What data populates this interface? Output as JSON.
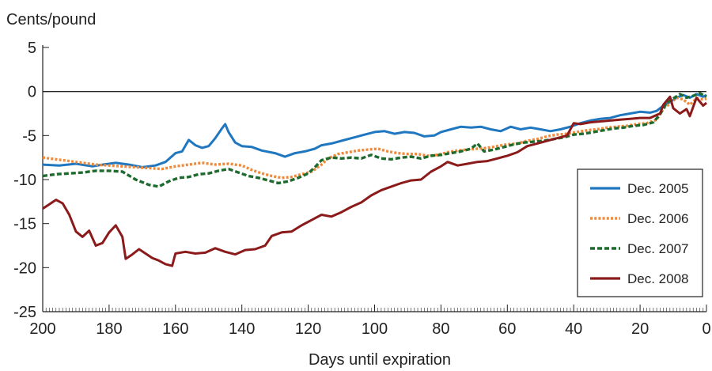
{
  "chart_data": {
    "type": "line",
    "ylabel": "Cents/pound",
    "xlabel": "Days until expiration",
    "xlim": [
      200,
      0
    ],
    "ylim": [
      -25,
      5
    ],
    "xticks": [
      200,
      180,
      160,
      140,
      120,
      100,
      80,
      60,
      40,
      20,
      0
    ],
    "yticks": [
      5,
      0,
      -5,
      -10,
      -15,
      -20,
      -25
    ],
    "grid": false,
    "legend_position": "right",
    "series": [
      {
        "name": "Dec. 2005",
        "color": "#1f77c0",
        "style": "solid",
        "points": [
          [
            200,
            -8.3
          ],
          [
            195,
            -8.4
          ],
          [
            190,
            -8.2
          ],
          [
            185,
            -8.5
          ],
          [
            182,
            -8.3
          ],
          [
            178,
            -8.1
          ],
          [
            174,
            -8.3
          ],
          [
            170,
            -8.6
          ],
          [
            166,
            -8.4
          ],
          [
            163,
            -8.0
          ],
          [
            160,
            -7.0
          ],
          [
            158,
            -6.8
          ],
          [
            156,
            -5.5
          ],
          [
            154,
            -6.1
          ],
          [
            152,
            -6.4
          ],
          [
            150,
            -6.2
          ],
          [
            148,
            -5.3
          ],
          [
            146,
            -4.2
          ],
          [
            145,
            -3.7
          ],
          [
            144,
            -4.6
          ],
          [
            142,
            -5.8
          ],
          [
            140,
            -6.2
          ],
          [
            137,
            -6.3
          ],
          [
            134,
            -6.7
          ],
          [
            130,
            -7.0
          ],
          [
            127,
            -7.4
          ],
          [
            124,
            -7.0
          ],
          [
            121,
            -6.8
          ],
          [
            118,
            -6.5
          ],
          [
            116,
            -6.1
          ],
          [
            113,
            -5.9
          ],
          [
            110,
            -5.6
          ],
          [
            106,
            -5.2
          ],
          [
            103,
            -4.9
          ],
          [
            100,
            -4.6
          ],
          [
            97,
            -4.5
          ],
          [
            94,
            -4.8
          ],
          [
            91,
            -4.6
          ],
          [
            88,
            -4.7
          ],
          [
            85,
            -5.1
          ],
          [
            82,
            -5.0
          ],
          [
            80,
            -4.6
          ],
          [
            77,
            -4.3
          ],
          [
            74,
            -4.0
          ],
          [
            71,
            -4.1
          ],
          [
            68,
            -4.0
          ],
          [
            65,
            -4.3
          ],
          [
            62,
            -4.5
          ],
          [
            59,
            -4.0
          ],
          [
            56,
            -4.3
          ],
          [
            53,
            -4.1
          ],
          [
            50,
            -4.3
          ],
          [
            47,
            -4.5
          ],
          [
            44,
            -4.3
          ],
          [
            41,
            -4.0
          ],
          [
            38,
            -3.6
          ],
          [
            35,
            -3.3
          ],
          [
            32,
            -3.1
          ],
          [
            29,
            -3.0
          ],
          [
            26,
            -2.7
          ],
          [
            23,
            -2.5
          ],
          [
            20,
            -2.3
          ],
          [
            17,
            -2.4
          ],
          [
            15,
            -2.2
          ],
          [
            13,
            -1.6
          ],
          [
            11,
            -1.2
          ],
          [
            9,
            -0.7
          ],
          [
            7,
            -0.4
          ],
          [
            5,
            -0.7
          ],
          [
            3,
            -0.3
          ],
          [
            1,
            -0.6
          ],
          [
            0,
            -0.4
          ]
        ]
      },
      {
        "name": "Dec. 2006",
        "color": "#f08a3a",
        "style": "dotted",
        "points": [
          [
            200,
            -7.5
          ],
          [
            196,
            -7.7
          ],
          [
            192,
            -7.9
          ],
          [
            188,
            -8.1
          ],
          [
            184,
            -8.3
          ],
          [
            180,
            -8.4
          ],
          [
            176,
            -8.5
          ],
          [
            172,
            -8.6
          ],
          [
            168,
            -8.7
          ],
          [
            164,
            -8.8
          ],
          [
            160,
            -8.5
          ],
          [
            156,
            -8.3
          ],
          [
            152,
            -8.1
          ],
          [
            148,
            -8.3
          ],
          [
            144,
            -8.2
          ],
          [
            140,
            -8.4
          ],
          [
            137,
            -8.9
          ],
          [
            134,
            -9.3
          ],
          [
            131,
            -9.6
          ],
          [
            128,
            -9.8
          ],
          [
            125,
            -9.7
          ],
          [
            122,
            -9.4
          ],
          [
            119,
            -9.1
          ],
          [
            116,
            -8.3
          ],
          [
            114,
            -7.6
          ],
          [
            111,
            -7.1
          ],
          [
            108,
            -6.9
          ],
          [
            105,
            -6.7
          ],
          [
            102,
            -6.6
          ],
          [
            99,
            -6.5
          ],
          [
            96,
            -6.8
          ],
          [
            93,
            -7.0
          ],
          [
            90,
            -7.1
          ],
          [
            87,
            -7.1
          ],
          [
            84,
            -7.3
          ],
          [
            81,
            -7.2
          ],
          [
            78,
            -6.9
          ],
          [
            75,
            -6.7
          ],
          [
            72,
            -6.6
          ],
          [
            69,
            -6.5
          ],
          [
            66,
            -6.4
          ],
          [
            63,
            -6.2
          ],
          [
            60,
            -6.0
          ],
          [
            57,
            -5.9
          ],
          [
            54,
            -5.6
          ],
          [
            51,
            -5.4
          ],
          [
            48,
            -5.1
          ],
          [
            45,
            -4.9
          ],
          [
            42,
            -4.8
          ],
          [
            39,
            -4.6
          ],
          [
            36,
            -4.4
          ],
          [
            33,
            -4.3
          ],
          [
            30,
            -4.1
          ],
          [
            27,
            -4.0
          ],
          [
            24,
            -3.9
          ],
          [
            21,
            -3.7
          ],
          [
            18,
            -3.6
          ],
          [
            15,
            -3.2
          ],
          [
            13,
            -1.9
          ],
          [
            11,
            -1.4
          ],
          [
            9,
            -0.7
          ],
          [
            7,
            -0.9
          ],
          [
            5,
            -1.5
          ],
          [
            3,
            -0.8
          ],
          [
            1,
            -0.9
          ],
          [
            0,
            -0.8
          ]
        ]
      },
      {
        "name": "Dec. 2007",
        "color": "#1e6b2e",
        "style": "dashed",
        "points": [
          [
            200,
            -9.6
          ],
          [
            196,
            -9.4
          ],
          [
            192,
            -9.3
          ],
          [
            188,
            -9.2
          ],
          [
            184,
            -9.0
          ],
          [
            180,
            -9.0
          ],
          [
            176,
            -9.1
          ],
          [
            172,
            -10.0
          ],
          [
            168,
            -10.6
          ],
          [
            165,
            -10.8
          ],
          [
            162,
            -10.2
          ],
          [
            159,
            -9.8
          ],
          [
            156,
            -9.7
          ],
          [
            153,
            -9.4
          ],
          [
            150,
            -9.3
          ],
          [
            147,
            -9.0
          ],
          [
            144,
            -8.8
          ],
          [
            141,
            -9.2
          ],
          [
            138,
            -9.6
          ],
          [
            135,
            -9.8
          ],
          [
            132,
            -10.1
          ],
          [
            129,
            -10.4
          ],
          [
            126,
            -10.2
          ],
          [
            123,
            -9.8
          ],
          [
            120,
            -9.3
          ],
          [
            118,
            -8.6
          ],
          [
            116,
            -7.8
          ],
          [
            113,
            -7.5
          ],
          [
            110,
            -7.6
          ],
          [
            107,
            -7.5
          ],
          [
            104,
            -7.6
          ],
          [
            101,
            -7.2
          ],
          [
            98,
            -7.6
          ],
          [
            95,
            -7.7
          ],
          [
            92,
            -7.5
          ],
          [
            89,
            -7.4
          ],
          [
            86,
            -7.6
          ],
          [
            83,
            -7.3
          ],
          [
            80,
            -7.2
          ],
          [
            77,
            -7.0
          ],
          [
            74,
            -6.8
          ],
          [
            71,
            -6.5
          ],
          [
            69,
            -5.9
          ],
          [
            67,
            -6.8
          ],
          [
            64,
            -6.6
          ],
          [
            61,
            -6.3
          ],
          [
            58,
            -6.0
          ],
          [
            55,
            -5.8
          ],
          [
            52,
            -5.7
          ],
          [
            49,
            -5.6
          ],
          [
            46,
            -5.4
          ],
          [
            43,
            -5.2
          ],
          [
            40,
            -4.9
          ],
          [
            37,
            -4.8
          ],
          [
            34,
            -4.6
          ],
          [
            31,
            -4.4
          ],
          [
            28,
            -4.2
          ],
          [
            25,
            -4.1
          ],
          [
            22,
            -3.9
          ],
          [
            19,
            -3.8
          ],
          [
            16,
            -3.5
          ],
          [
            14,
            -2.6
          ],
          [
            12,
            -1.3
          ],
          [
            10,
            -0.8
          ],
          [
            8,
            -0.3
          ],
          [
            6,
            -0.7
          ],
          [
            4,
            -0.5
          ],
          [
            2,
            -0.2
          ],
          [
            0,
            -0.6
          ]
        ]
      },
      {
        "name": "Dec. 2008",
        "color": "#8b1a1a",
        "style": "solid",
        "points": [
          [
            200,
            -13.3
          ],
          [
            198,
            -12.8
          ],
          [
            196,
            -12.3
          ],
          [
            194,
            -12.7
          ],
          [
            192,
            -14.0
          ],
          [
            190,
            -15.9
          ],
          [
            188,
            -16.5
          ],
          [
            186,
            -15.8
          ],
          [
            184,
            -17.5
          ],
          [
            182,
            -17.2
          ],
          [
            180,
            -16.0
          ],
          [
            178,
            -15.2
          ],
          [
            176,
            -16.5
          ],
          [
            175,
            -19.0
          ],
          [
            173,
            -18.5
          ],
          [
            171,
            -17.9
          ],
          [
            169,
            -18.4
          ],
          [
            167,
            -18.9
          ],
          [
            165,
            -19.2
          ],
          [
            163,
            -19.6
          ],
          [
            161,
            -19.8
          ],
          [
            160,
            -18.4
          ],
          [
            157,
            -18.2
          ],
          [
            154,
            -18.4
          ],
          [
            151,
            -18.3
          ],
          [
            148,
            -17.8
          ],
          [
            145,
            -18.2
          ],
          [
            142,
            -18.5
          ],
          [
            139,
            -18.0
          ],
          [
            136,
            -17.9
          ],
          [
            133,
            -17.5
          ],
          [
            131,
            -16.4
          ],
          [
            128,
            -16.0
          ],
          [
            125,
            -15.9
          ],
          [
            122,
            -15.2
          ],
          [
            119,
            -14.6
          ],
          [
            116,
            -14.0
          ],
          [
            113,
            -14.2
          ],
          [
            110,
            -13.7
          ],
          [
            107,
            -13.1
          ],
          [
            104,
            -12.6
          ],
          [
            101,
            -11.8
          ],
          [
            98,
            -11.2
          ],
          [
            95,
            -10.8
          ],
          [
            92,
            -10.4
          ],
          [
            89,
            -10.1
          ],
          [
            86,
            -10.0
          ],
          [
            83,
            -9.1
          ],
          [
            80,
            -8.5
          ],
          [
            78,
            -8.0
          ],
          [
            75,
            -8.4
          ],
          [
            72,
            -8.2
          ],
          [
            69,
            -8.0
          ],
          [
            66,
            -7.9
          ],
          [
            63,
            -7.6
          ],
          [
            60,
            -7.3
          ],
          [
            57,
            -6.9
          ],
          [
            54,
            -6.2
          ],
          [
            51,
            -5.9
          ],
          [
            48,
            -5.6
          ],
          [
            45,
            -5.3
          ],
          [
            42,
            -5.0
          ],
          [
            40,
            -3.6
          ],
          [
            38,
            -3.7
          ],
          [
            35,
            -3.5
          ],
          [
            32,
            -3.4
          ],
          [
            29,
            -3.3
          ],
          [
            26,
            -3.2
          ],
          [
            23,
            -3.1
          ],
          [
            20,
            -3.0
          ],
          [
            17,
            -3.0
          ],
          [
            14,
            -2.5
          ],
          [
            13,
            -1.5
          ],
          [
            11,
            -0.6
          ],
          [
            10,
            -1.9
          ],
          [
            8,
            -2.5
          ],
          [
            6,
            -2.0
          ],
          [
            5,
            -2.8
          ],
          [
            3,
            -0.7
          ],
          [
            1,
            -1.6
          ],
          [
            0,
            -1.3
          ]
        ]
      }
    ]
  }
}
